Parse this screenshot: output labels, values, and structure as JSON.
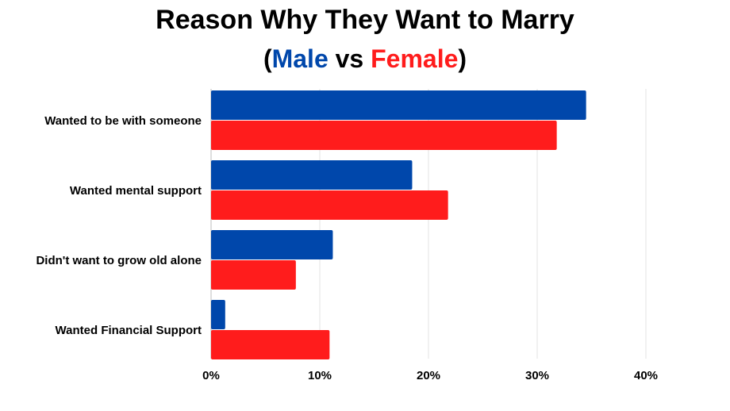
{
  "chart_data": {
    "type": "bar",
    "orientation": "horizontal",
    "title": "Reason Why They Want to Marry",
    "subtitle": {
      "open": "(",
      "male_word": "Male",
      "vs_word": " vs ",
      "female_word": "Female",
      "close": ")"
    },
    "categories": [
      "Wanted to be with someone",
      "Wanted mental support",
      "Didn't want to grow old alone",
      "Wanted Financial Support"
    ],
    "series": [
      {
        "name": "Male",
        "color": "#0047ab",
        "values": [
          34.5,
          18.5,
          11.2,
          1.3
        ]
      },
      {
        "name": "Female",
        "color": "#ff1c1c",
        "values": [
          31.8,
          21.8,
          7.8,
          10.9
        ]
      }
    ],
    "xlim": [
      0,
      40
    ],
    "x_ticks": [
      0,
      10,
      20,
      30,
      40
    ],
    "x_tick_labels": [
      "0%",
      "10%",
      "20%",
      "30%",
      "40%"
    ],
    "grid": "vertical",
    "legend": "none (series named in subtitle)"
  }
}
